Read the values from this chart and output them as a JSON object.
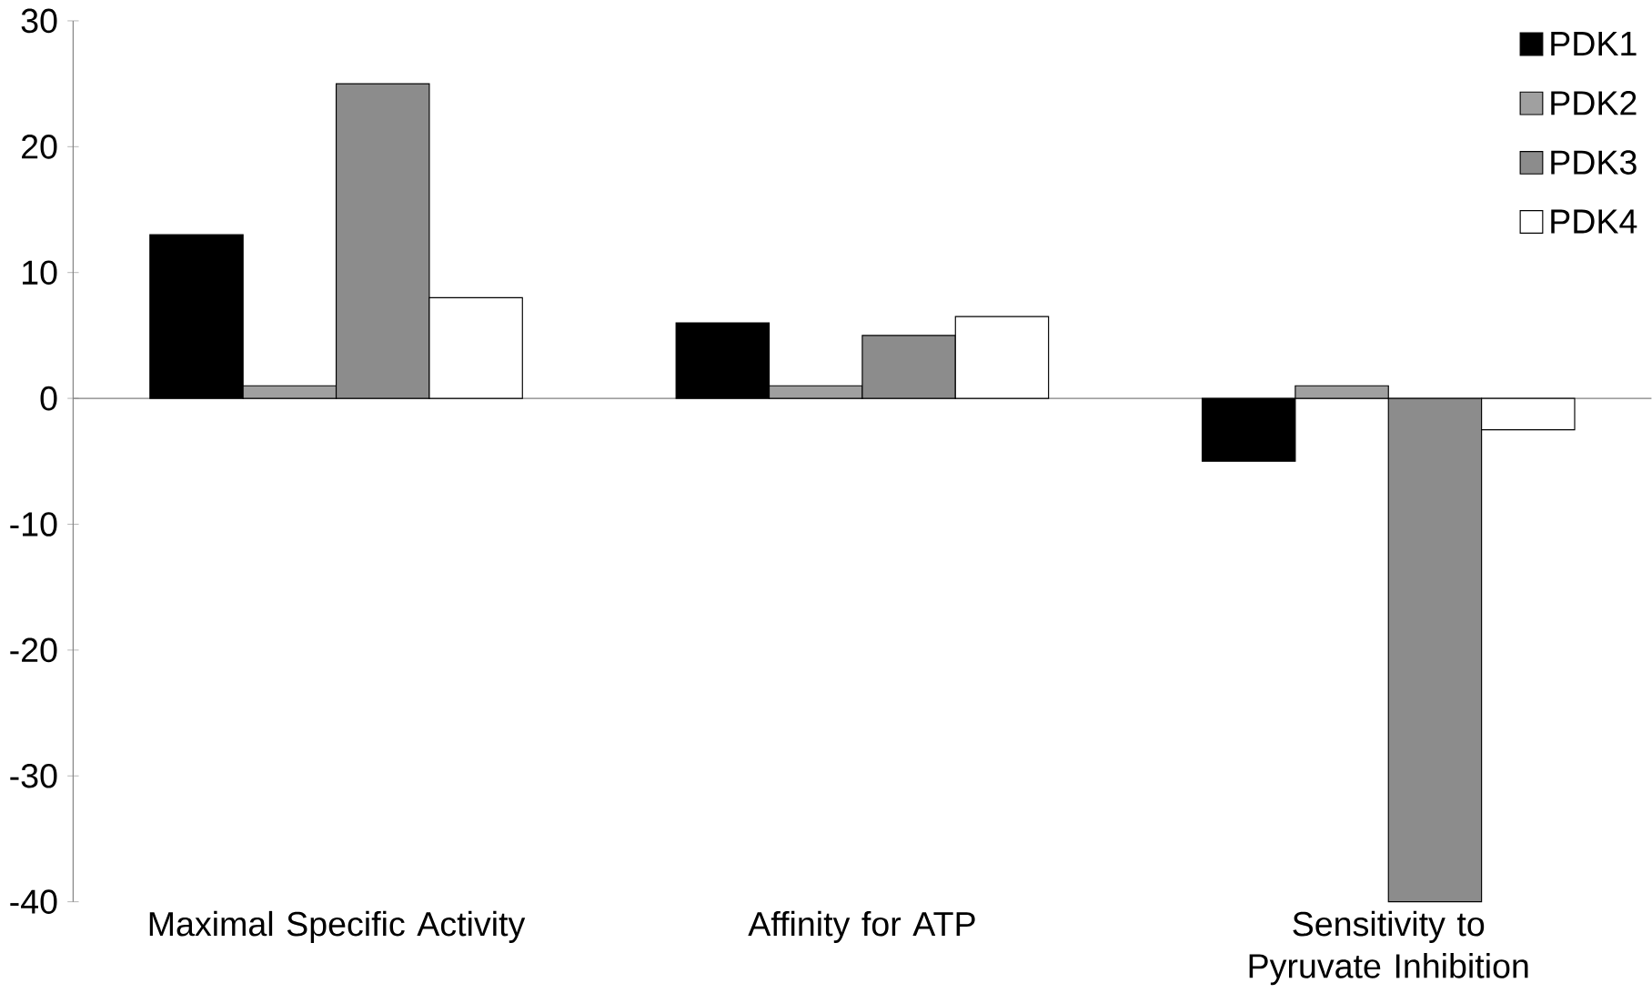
{
  "chart_data": {
    "type": "bar",
    "categories": [
      "Maximal Specific Activity",
      "Affinity for ATP",
      "Sensitivity to Pyruvate Inhibition"
    ],
    "series": [
      {
        "name": "PDK1",
        "color": "#000000",
        "values": [
          13,
          6,
          -5
        ]
      },
      {
        "name": "PDK2",
        "color": "#a0a0a0",
        "values": [
          1,
          1,
          1
        ]
      },
      {
        "name": "PDK3",
        "color": "#8c8c8c",
        "values": [
          25,
          5,
          -40
        ]
      },
      {
        "name": "PDK4",
        "color": "#ffffff",
        "values": [
          8,
          6.5,
          -2.5
        ]
      }
    ],
    "ylim": [
      -40,
      30
    ],
    "yticks": [
      -40,
      -30,
      -20,
      -10,
      0,
      10,
      20,
      30
    ],
    "legend": "top right"
  }
}
